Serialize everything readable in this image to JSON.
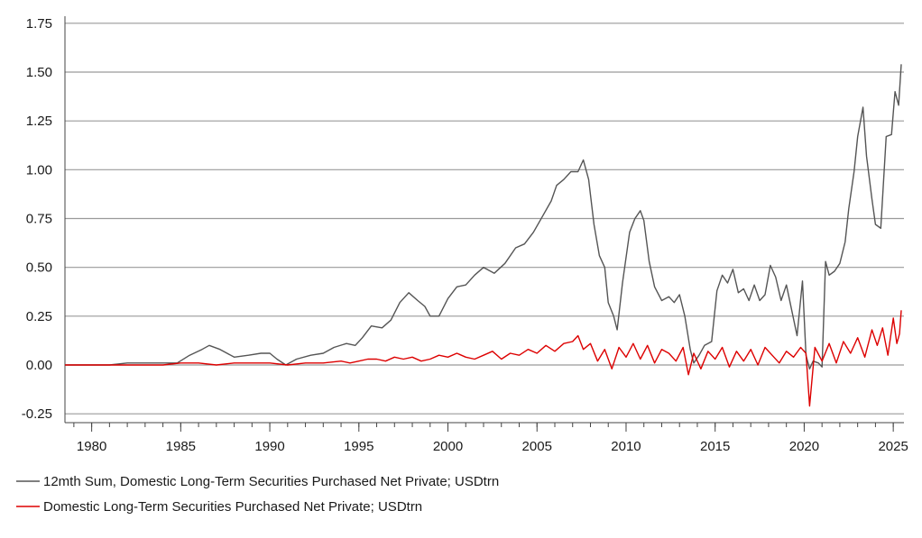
{
  "chart_data": {
    "type": "line",
    "title": "",
    "xlabel": "",
    "ylabel": "",
    "xlim": [
      1978.5,
      2025.6
    ],
    "ylim": [
      -0.3,
      1.8
    ],
    "yticks": [
      -0.25,
      0.0,
      0.25,
      0.5,
      0.75,
      1.0,
      1.25,
      1.5,
      1.75
    ],
    "ytick_labels": [
      "-0.25",
      "0.00",
      "0.25",
      "0.50",
      "0.75",
      "1.00",
      "1.25",
      "1.50",
      "1.75"
    ],
    "xticks": [
      1980,
      1985,
      1990,
      1995,
      2000,
      2005,
      2010,
      2015,
      2020,
      2025
    ],
    "xtick_labels": [
      "1980",
      "1985",
      "1990",
      "1995",
      "2000",
      "2005",
      "2010",
      "2015",
      "2020",
      "2025"
    ],
    "grid": "horizontal",
    "legend_position": "bottom-left",
    "series": [
      {
        "name": "12mth Sum, Domestic Long-Term Securities Purchased Net Private; USDtrn",
        "color": "#555555",
        "x": [
          1978.5,
          1980,
          1981,
          1982,
          1983,
          1984,
          1984.8,
          1985.5,
          1986.2,
          1986.6,
          1987.2,
          1988.0,
          1988.8,
          1989.5,
          1990.0,
          1990.4,
          1990.9,
          1991.5,
          1992.3,
          1993.0,
          1993.6,
          1994.3,
          1994.8,
          1995.2,
          1995.7,
          1996.3,
          1996.8,
          1997.3,
          1997.8,
          1998.3,
          1998.7,
          1999.0,
          1999.5,
          2000.0,
          2000.5,
          2001.0,
          2001.5,
          2002.0,
          2002.6,
          2003.2,
          2003.8,
          2004.3,
          2004.8,
          2005.3,
          2005.8,
          2006.1,
          2006.5,
          2006.9,
          2007.3,
          2007.6,
          2007.9,
          2008.2,
          2008.5,
          2008.8,
          2009.0,
          2009.3,
          2009.5,
          2009.8,
          2010.2,
          2010.5,
          2010.8,
          2011.0,
          2011.3,
          2011.6,
          2012.0,
          2012.4,
          2012.7,
          2013.0,
          2013.3,
          2013.6,
          2013.8,
          2014.1,
          2014.4,
          2014.8,
          2015.1,
          2015.4,
          2015.7,
          2016.0,
          2016.3,
          2016.6,
          2016.9,
          2017.2,
          2017.5,
          2017.8,
          2018.1,
          2018.4,
          2018.7,
          2019.0,
          2019.3,
          2019.6,
          2019.9,
          2020.1,
          2020.3,
          2020.5,
          2020.8,
          2021.0,
          2021.2,
          2021.4,
          2021.7,
          2022.0,
          2022.3,
          2022.5,
          2022.8,
          2023.0,
          2023.3,
          2023.5,
          2023.8,
          2024.0,
          2024.3,
          2024.6,
          2024.9,
          2025.1,
          2025.3,
          2025.45
        ],
        "values": [
          0.0,
          0.0,
          0.0,
          0.01,
          0.01,
          0.01,
          0.01,
          0.05,
          0.08,
          0.1,
          0.08,
          0.04,
          0.05,
          0.06,
          0.06,
          0.03,
          0.0,
          0.03,
          0.05,
          0.06,
          0.09,
          0.11,
          0.1,
          0.14,
          0.2,
          0.19,
          0.23,
          0.32,
          0.37,
          0.33,
          0.3,
          0.25,
          0.25,
          0.34,
          0.4,
          0.41,
          0.46,
          0.5,
          0.47,
          0.52,
          0.6,
          0.62,
          0.68,
          0.76,
          0.84,
          0.92,
          0.95,
          0.99,
          0.99,
          1.05,
          0.95,
          0.72,
          0.56,
          0.5,
          0.32,
          0.25,
          0.18,
          0.42,
          0.68,
          0.75,
          0.79,
          0.74,
          0.53,
          0.4,
          0.33,
          0.35,
          0.32,
          0.36,
          0.25,
          0.08,
          0.01,
          0.05,
          0.1,
          0.12,
          0.38,
          0.46,
          0.42,
          0.49,
          0.37,
          0.39,
          0.33,
          0.41,
          0.33,
          0.36,
          0.51,
          0.45,
          0.33,
          0.41,
          0.28,
          0.15,
          0.43,
          0.05,
          -0.02,
          0.02,
          0.01,
          -0.01,
          0.53,
          0.46,
          0.48,
          0.52,
          0.63,
          0.8,
          0.99,
          1.17,
          1.32,
          1.07,
          0.85,
          0.72,
          0.7,
          1.17,
          1.18,
          1.4,
          1.33,
          1.54
        ]
      },
      {
        "name": "Domestic Long-Term Securities Purchased Net Private; USDtrn",
        "color": "#dd0000",
        "x": [
          1978.5,
          1980,
          1982,
          1984,
          1985,
          1986,
          1987,
          1988,
          1989,
          1990,
          1991,
          1992,
          1993,
          1994,
          1994.5,
          1995,
          1995.5,
          1996,
          1996.5,
          1997,
          1997.5,
          1998,
          1998.5,
          1999,
          1999.5,
          2000,
          2000.5,
          2001,
          2001.5,
          2002,
          2002.5,
          2003,
          2003.5,
          2004,
          2004.5,
          2005,
          2005.5,
          2006,
          2006.5,
          2007,
          2007.3,
          2007.6,
          2008,
          2008.4,
          2008.8,
          2009.2,
          2009.6,
          2010,
          2010.4,
          2010.8,
          2011.2,
          2011.6,
          2012,
          2012.4,
          2012.8,
          2013.2,
          2013.5,
          2013.8,
          2014.2,
          2014.6,
          2015,
          2015.4,
          2015.8,
          2016.2,
          2016.6,
          2017,
          2017.4,
          2017.8,
          2018.2,
          2018.6,
          2019,
          2019.4,
          2019.8,
          2020.1,
          2020.3,
          2020.6,
          2021,
          2021.4,
          2021.8,
          2022.2,
          2022.6,
          2023,
          2023.4,
          2023.8,
          2024.1,
          2024.4,
          2024.7,
          2025,
          2025.2,
          2025.35,
          2025.45
        ],
        "values": [
          0.0,
          0.0,
          0.0,
          0.0,
          0.01,
          0.01,
          0.0,
          0.01,
          0.01,
          0.01,
          0.0,
          0.01,
          0.01,
          0.02,
          0.01,
          0.02,
          0.03,
          0.03,
          0.02,
          0.04,
          0.03,
          0.04,
          0.02,
          0.03,
          0.05,
          0.04,
          0.06,
          0.04,
          0.03,
          0.05,
          0.07,
          0.03,
          0.06,
          0.05,
          0.08,
          0.06,
          0.1,
          0.07,
          0.11,
          0.12,
          0.15,
          0.08,
          0.11,
          0.02,
          0.08,
          -0.02,
          0.09,
          0.04,
          0.11,
          0.03,
          0.1,
          0.01,
          0.08,
          0.06,
          0.02,
          0.09,
          -0.05,
          0.06,
          -0.02,
          0.07,
          0.03,
          0.09,
          -0.01,
          0.07,
          0.02,
          0.08,
          0.0,
          0.09,
          0.05,
          0.01,
          0.07,
          0.04,
          0.09,
          0.06,
          -0.21,
          0.09,
          0.02,
          0.11,
          0.01,
          0.12,
          0.06,
          0.14,
          0.04,
          0.18,
          0.1,
          0.19,
          0.05,
          0.24,
          0.11,
          0.16,
          0.28
        ]
      }
    ]
  }
}
